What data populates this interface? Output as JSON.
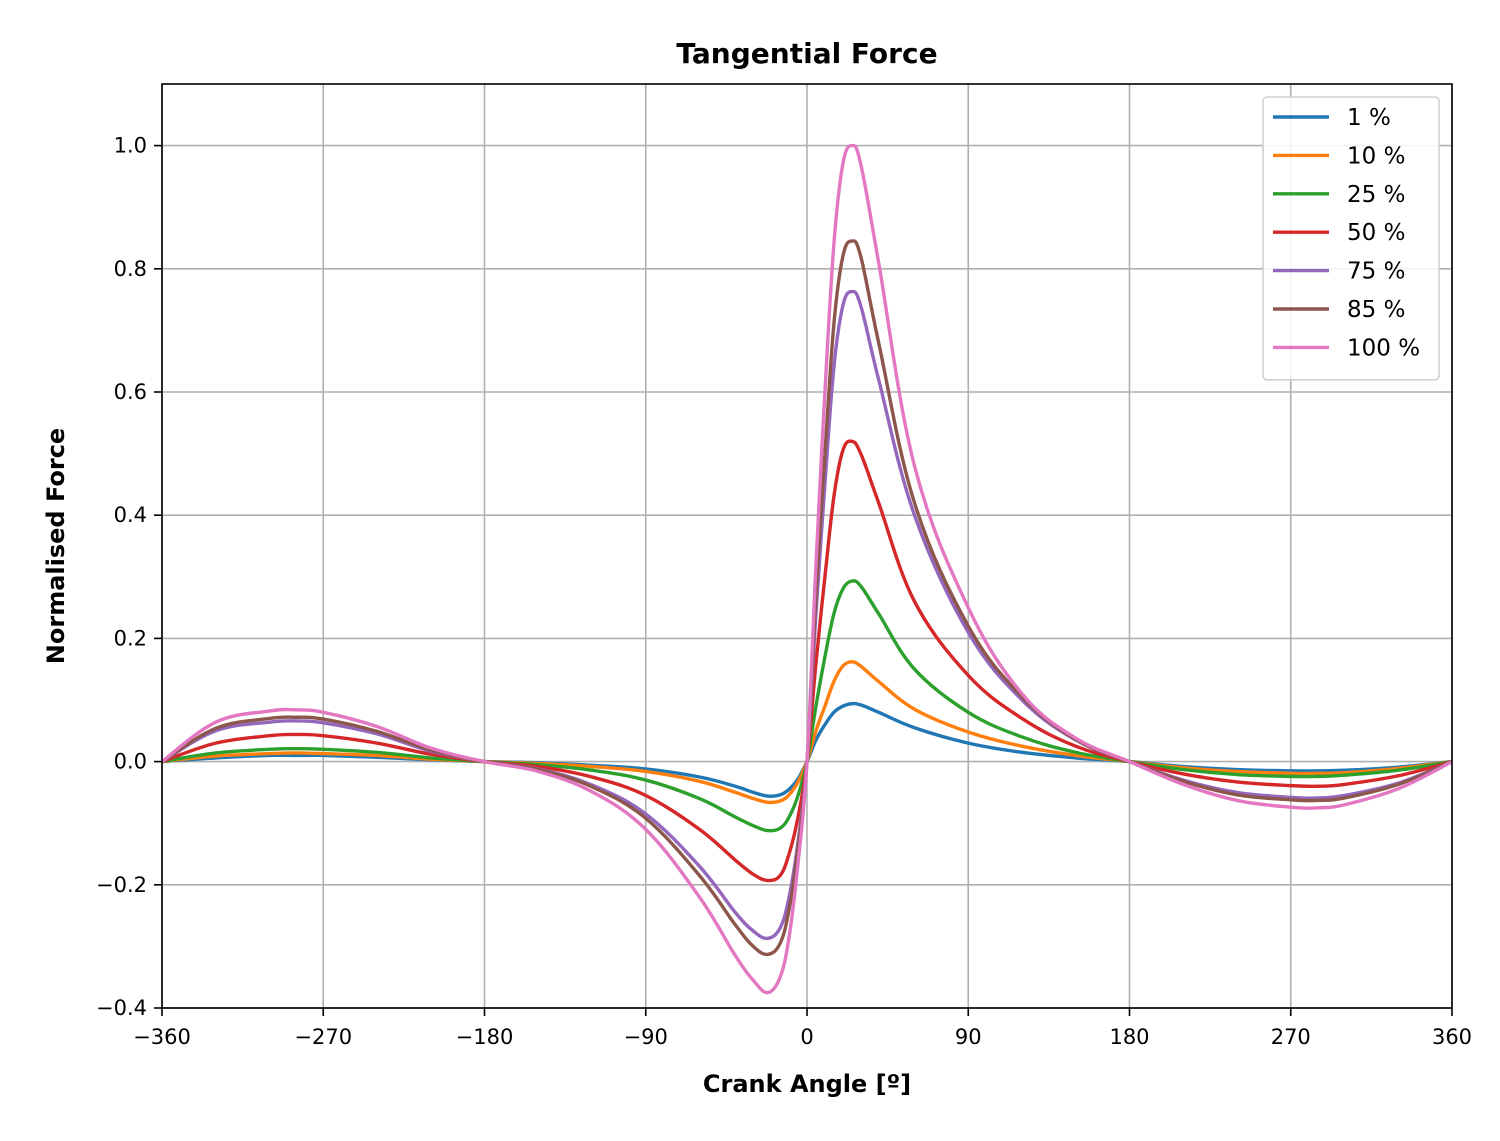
{
  "chart_data": {
    "type": "line",
    "title": "Tangential Force",
    "xlabel": "Crank Angle [º]",
    "ylabel": "Normalised Force",
    "xlim": [
      -360,
      360
    ],
    "ylim": [
      -0.4,
      1.1
    ],
    "x_ticks": [
      -360,
      -270,
      -180,
      -90,
      0,
      90,
      180,
      270,
      360
    ],
    "x_tick_labels": [
      "−360",
      "−270",
      "−180",
      "−90",
      "0",
      "90",
      "180",
      "270",
      "360"
    ],
    "y_ticks": [
      -0.4,
      -0.2,
      0.0,
      0.2,
      0.4,
      0.6,
      0.8,
      1.0
    ],
    "y_tick_labels": [
      "−0.4",
      "−0.2",
      "0.0",
      "0.2",
      "0.4",
      "0.6",
      "0.8",
      "1.0"
    ],
    "grid": true,
    "legend_position": "top-right",
    "x": [
      -360,
      -330,
      -300,
      -285,
      -270,
      -240,
      -210,
      -180,
      -150,
      -120,
      -90,
      -60,
      -40,
      -30,
      -22,
      -15,
      -10,
      -5,
      0,
      5,
      10,
      15,
      20,
      25,
      30,
      40,
      60,
      90,
      120,
      150,
      180,
      210,
      240,
      270,
      285,
      300,
      330,
      360
    ],
    "series": [
      {
        "name": "1 %",
        "color": "#1f77b4",
        "values": [
          0,
          0.006,
          0.01,
          0.01,
          0.01,
          0.007,
          0.003,
          0,
          -0.002,
          -0.006,
          -0.012,
          -0.025,
          -0.04,
          -0.05,
          -0.056,
          -0.054,
          -0.045,
          -0.028,
          0,
          0.035,
          0.06,
          0.08,
          0.09,
          0.094,
          0.092,
          0.08,
          0.055,
          0.03,
          0.015,
          0.006,
          0,
          -0.008,
          -0.013,
          -0.015,
          -0.015,
          -0.014,
          -0.009,
          0
        ]
      },
      {
        "name": "10 %",
        "color": "#ff7f0e",
        "values": [
          0,
          0.009,
          0.013,
          0.014,
          0.013,
          0.01,
          0.004,
          0,
          -0.003,
          -0.008,
          -0.016,
          -0.032,
          -0.05,
          -0.06,
          -0.066,
          -0.064,
          -0.054,
          -0.033,
          0,
          0.05,
          0.09,
          0.13,
          0.155,
          0.162,
          0.155,
          0.13,
          0.085,
          0.048,
          0.025,
          0.01,
          0,
          -0.01,
          -0.016,
          -0.019,
          -0.019,
          -0.018,
          -0.011,
          0
        ]
      },
      {
        "name": "25 %",
        "color": "#2ca02c",
        "values": [
          0,
          0.014,
          0.02,
          0.021,
          0.02,
          0.015,
          0.006,
          0,
          -0.005,
          -0.014,
          -0.03,
          -0.06,
          -0.09,
          -0.104,
          -0.112,
          -0.108,
          -0.09,
          -0.055,
          0,
          0.09,
          0.17,
          0.24,
          0.28,
          0.293,
          0.285,
          0.24,
          0.15,
          0.08,
          0.04,
          0.015,
          0,
          -0.013,
          -0.021,
          -0.024,
          -0.024,
          -0.022,
          -0.014,
          0
        ]
      },
      {
        "name": "50 %",
        "color": "#d62728",
        "values": [
          0,
          0.03,
          0.042,
          0.044,
          0.042,
          0.03,
          0.012,
          0,
          -0.008,
          -0.025,
          -0.055,
          -0.11,
          -0.16,
          -0.183,
          -0.193,
          -0.185,
          -0.15,
          -0.09,
          0,
          0.16,
          0.3,
          0.43,
          0.505,
          0.52,
          0.5,
          0.42,
          0.26,
          0.14,
          0.07,
          0.025,
          0,
          -0.02,
          -0.033,
          -0.039,
          -0.04,
          -0.037,
          -0.023,
          0
        ]
      },
      {
        "name": "75 %",
        "color": "#9467bd",
        "values": [
          0,
          0.05,
          0.064,
          0.066,
          0.063,
          0.045,
          0.017,
          0,
          -0.012,
          -0.038,
          -0.085,
          -0.17,
          -0.245,
          -0.275,
          -0.287,
          -0.27,
          -0.22,
          -0.13,
          0,
          0.24,
          0.45,
          0.64,
          0.74,
          0.763,
          0.74,
          0.62,
          0.4,
          0.21,
          0.1,
          0.035,
          0,
          -0.03,
          -0.05,
          -0.058,
          -0.059,
          -0.055,
          -0.035,
          0
        ]
      },
      {
        "name": "85 %",
        "color": "#8c564b",
        "values": [
          0,
          0.054,
          0.07,
          0.072,
          0.069,
          0.049,
          0.019,
          0,
          -0.013,
          -0.041,
          -0.092,
          -0.185,
          -0.265,
          -0.3,
          -0.313,
          -0.295,
          -0.24,
          -0.14,
          0,
          0.27,
          0.5,
          0.71,
          0.82,
          0.845,
          0.82,
          0.68,
          0.42,
          0.22,
          0.105,
          0.036,
          0,
          -0.032,
          -0.054,
          -0.062,
          -0.063,
          -0.059,
          -0.037,
          0
        ]
      },
      {
        "name": "100 %",
        "color": "#e377c2",
        "values": [
          0,
          0.064,
          0.082,
          0.084,
          0.08,
          0.057,
          0.022,
          0,
          -0.016,
          -0.049,
          -0.11,
          -0.22,
          -0.315,
          -0.355,
          -0.375,
          -0.35,
          -0.285,
          -0.165,
          0,
          0.32,
          0.6,
          0.84,
          0.97,
          1.0,
          0.97,
          0.81,
          0.48,
          0.25,
          0.11,
          0.038,
          0,
          -0.037,
          -0.063,
          -0.074,
          -0.075,
          -0.07,
          -0.044,
          0
        ]
      }
    ]
  }
}
